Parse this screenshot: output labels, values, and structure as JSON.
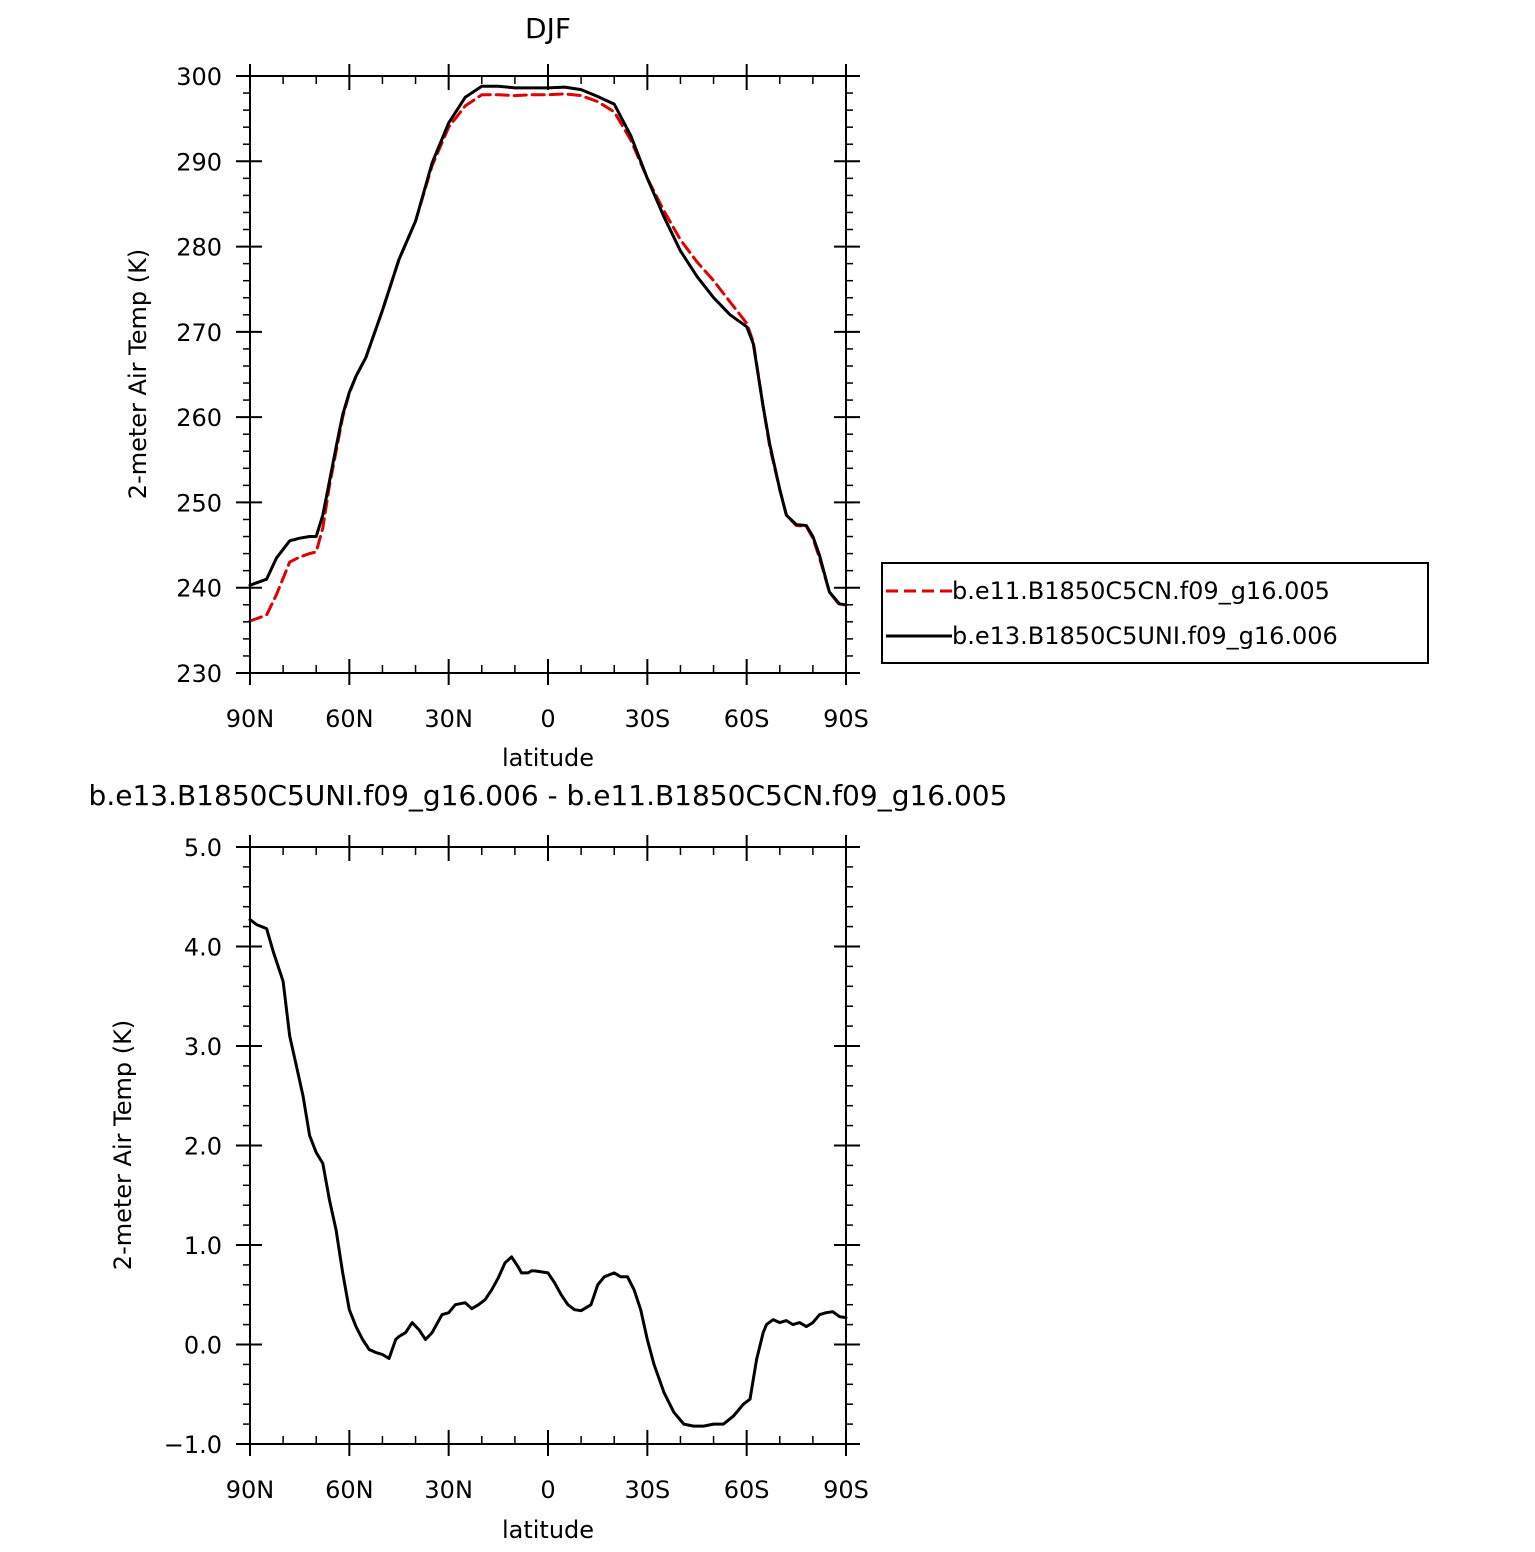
{
  "chart_data": [
    {
      "type": "line",
      "title": "DJF",
      "xlabel": "latitude",
      "ylabel": "2-meter Air Temp (K)",
      "xlim": [
        90,
        -90
      ],
      "ylim": [
        230,
        300
      ],
      "x_ticks": [
        90,
        60,
        30,
        0,
        -30,
        -60,
        -90
      ],
      "x_tick_labels": [
        "90N",
        "60N",
        "30N",
        "0",
        "30S",
        "60S",
        "90S"
      ],
      "y_ticks": [
        230,
        240,
        250,
        260,
        270,
        280,
        290,
        300
      ],
      "y_tick_labels": [
        "230",
        "240",
        "250",
        "260",
        "270",
        "280",
        "290",
        "300"
      ],
      "legend_position": "right",
      "series": [
        {
          "name": "b.e11.B1850C5CN.f09_g16.005",
          "color": "#e00000",
          "style": "dashed",
          "x": [
            90,
            85,
            82,
            78,
            75,
            72,
            70,
            68,
            66,
            64,
            62,
            60,
            58,
            55,
            50,
            45,
            40,
            35,
            30,
            25,
            20,
            15,
            10,
            5,
            0,
            -5,
            -10,
            -15,
            -20,
            -25,
            -30,
            -35,
            -40,
            -45,
            -50,
            -55,
            -60,
            -62,
            -65,
            -67,
            -70,
            -72,
            -75,
            -78,
            -80,
            -82,
            -85,
            -88,
            -90
          ],
          "y": [
            236.1,
            236.8,
            239.2,
            243.0,
            243.6,
            244.0,
            244.2,
            247.0,
            252.0,
            256.0,
            260.0,
            262.8,
            264.8,
            267.0,
            272.5,
            278.5,
            283.0,
            289.5,
            294.0,
            296.5,
            297.8,
            297.8,
            297.7,
            297.8,
            297.8,
            297.9,
            297.7,
            297.0,
            295.8,
            292.5,
            288.0,
            284.2,
            280.8,
            278.2,
            276.0,
            273.5,
            271.0,
            268.8,
            261.2,
            256.5,
            251.5,
            248.5,
            247.3,
            247.2,
            245.8,
            243.5,
            239.5,
            238.0,
            238.0
          ]
        },
        {
          "name": "b.e13.B1850C5UNI.f09_g16.006",
          "color": "#000000",
          "style": "solid",
          "x": [
            90,
            85,
            82,
            78,
            75,
            72,
            70,
            68,
            66,
            64,
            62,
            60,
            58,
            55,
            50,
            45,
            40,
            35,
            30,
            25,
            20,
            15,
            10,
            5,
            0,
            -5,
            -10,
            -15,
            -20,
            -25,
            -30,
            -35,
            -40,
            -45,
            -50,
            -55,
            -60,
            -62,
            -65,
            -67,
            -70,
            -72,
            -75,
            -78,
            -80,
            -82,
            -85,
            -88,
            -90
          ],
          "y": [
            240.3,
            241.0,
            243.5,
            245.5,
            245.8,
            246.0,
            246.0,
            248.5,
            252.5,
            256.5,
            260.3,
            262.9,
            264.8,
            267.0,
            272.5,
            278.5,
            283.0,
            289.8,
            294.5,
            297.5,
            298.8,
            298.8,
            298.6,
            298.6,
            298.6,
            298.7,
            298.4,
            297.6,
            296.7,
            293.0,
            288.0,
            283.5,
            279.5,
            276.5,
            274.0,
            272.0,
            270.6,
            268.6,
            261.2,
            256.8,
            251.5,
            248.5,
            247.4,
            247.3,
            246.0,
            243.8,
            239.5,
            238.1,
            238.0
          ]
        }
      ]
    },
    {
      "type": "line",
      "title": "b.e13.B1850C5UNI.f09_g16.006 - b.e11.B1850C5CN.f09_g16.005",
      "xlabel": "latitude",
      "ylabel": "2-meter Air Temp (K)",
      "xlim": [
        90,
        -90
      ],
      "ylim": [
        -1.0,
        5.0
      ],
      "x_ticks": [
        90,
        60,
        30,
        0,
        -30,
        -60,
        -90
      ],
      "x_tick_labels": [
        "90N",
        "60N",
        "30N",
        "0",
        "30S",
        "60S",
        "90S"
      ],
      "y_ticks": [
        -1.0,
        0.0,
        1.0,
        2.0,
        3.0,
        4.0,
        5.0
      ],
      "y_tick_labels": [
        "−1.0",
        "0.0",
        "1.0",
        "2.0",
        "3.0",
        "4.0",
        "5.0"
      ],
      "series": [
        {
          "color": "#000000",
          "style": "solid",
          "x": [
            90,
            88,
            85,
            83,
            80,
            78,
            76,
            74,
            72,
            70,
            68,
            66,
            64,
            62,
            60,
            58,
            56,
            54,
            52,
            50,
            48,
            46,
            45,
            43,
            41,
            39,
            37,
            35,
            32,
            30,
            28,
            25,
            23,
            21,
            19,
            17,
            15,
            13,
            11,
            9,
            8,
            6,
            5,
            4,
            2,
            0,
            -2,
            -4,
            -6,
            -8,
            -10,
            -13,
            -15,
            -17,
            -20,
            -22,
            -24,
            -26,
            -28,
            -30,
            -32,
            -35,
            -38,
            -41,
            -44,
            -47,
            -50,
            -53,
            -56,
            -59,
            -61,
            -63,
            -65,
            -66,
            -68,
            -70,
            -72,
            -74,
            -76,
            -78,
            -80,
            -82,
            -84,
            -86,
            -88,
            -90
          ],
          "y": [
            4.27,
            4.22,
            4.18,
            3.95,
            3.65,
            3.1,
            2.8,
            2.5,
            2.1,
            1.93,
            1.82,
            1.45,
            1.15,
            0.72,
            0.35,
            0.18,
            0.05,
            -0.05,
            -0.08,
            -0.1,
            -0.14,
            0.05,
            0.08,
            0.12,
            0.22,
            0.15,
            0.05,
            0.12,
            0.3,
            0.32,
            0.4,
            0.42,
            0.36,
            0.4,
            0.45,
            0.55,
            0.67,
            0.82,
            0.88,
            0.78,
            0.72,
            0.72,
            0.74,
            0.74,
            0.73,
            0.72,
            0.62,
            0.5,
            0.4,
            0.35,
            0.34,
            0.4,
            0.6,
            0.68,
            0.72,
            0.68,
            0.68,
            0.55,
            0.35,
            0.05,
            -0.2,
            -0.48,
            -0.68,
            -0.8,
            -0.82,
            -0.82,
            -0.8,
            -0.8,
            -0.72,
            -0.6,
            -0.55,
            -0.15,
            0.12,
            0.2,
            0.25,
            0.22,
            0.24,
            0.2,
            0.22,
            0.18,
            0.22,
            0.3,
            0.32,
            0.33,
            0.28,
            0.27
          ]
        }
      ]
    }
  ]
}
